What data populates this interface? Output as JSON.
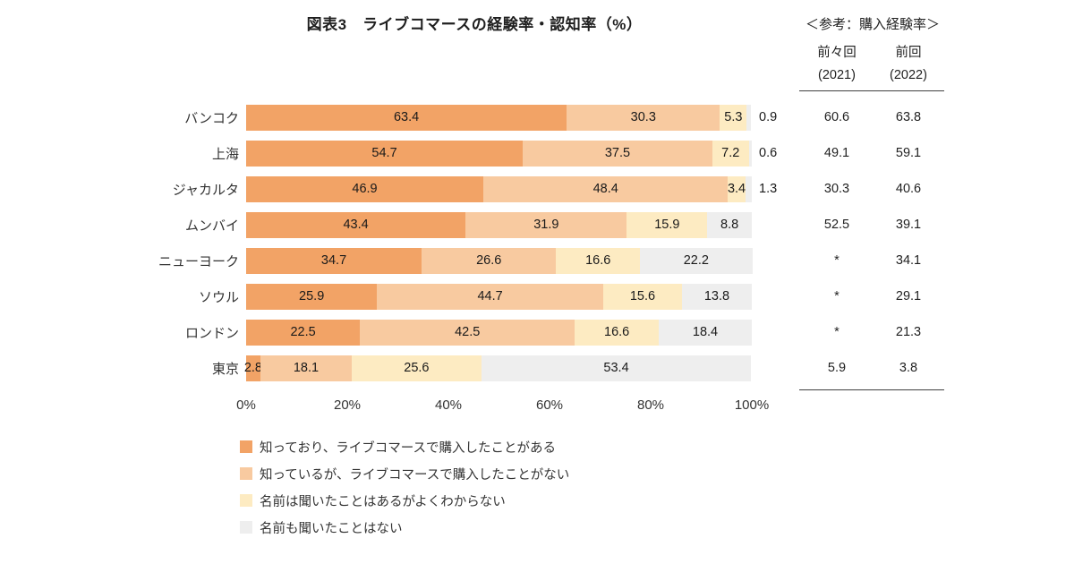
{
  "reference": {
    "heading": "＜参考：購入経験率＞",
    "columns": [
      {
        "label": "前々回",
        "year": "(2021)"
      },
      {
        "label": "前回",
        "year": "(2022)"
      }
    ],
    "values": [
      [
        "60.6",
        "63.8"
      ],
      [
        "49.1",
        "59.1"
      ],
      [
        "30.3",
        "40.6"
      ],
      [
        "52.5",
        "39.1"
      ],
      [
        "*",
        "34.1"
      ],
      [
        "*",
        "29.1"
      ],
      [
        "*",
        "21.3"
      ],
      [
        "5.9",
        "3.8"
      ]
    ]
  },
  "chart_data": {
    "type": "bar",
    "orientation": "horizontal",
    "stacked": true,
    "title": "図表3　ライブコマースの経験率・認知率（%）",
    "xlim": [
      0,
      100
    ],
    "x_ticks": [
      "0%",
      "20%",
      "40%",
      "60%",
      "80%",
      "100%"
    ],
    "grid": false,
    "legend_position": "bottom",
    "categories": [
      "バンコク",
      "上海",
      "ジャカルタ",
      "ムンバイ",
      "ニューヨーク",
      "ソウル",
      "ロンドン",
      "東京"
    ],
    "series": [
      {
        "name": "知っており、ライブコマースで購入したことがある",
        "color": "#F2A366",
        "values": [
          63.4,
          54.7,
          46.9,
          43.4,
          34.7,
          25.9,
          22.5,
          2.8
        ]
      },
      {
        "name": "知っているが、ライブコマースで購入したことがない",
        "color": "#F8CAA0",
        "values": [
          30.3,
          37.5,
          48.4,
          31.9,
          26.6,
          44.7,
          42.5,
          18.1
        ]
      },
      {
        "name": "名前は聞いたことはあるがよくわからない",
        "color": "#FDEBC2",
        "values": [
          5.3,
          7.2,
          3.4,
          15.9,
          16.6,
          15.6,
          16.6,
          25.6
        ]
      },
      {
        "name": "名前も聞いたことはない",
        "color": "#EEEEEE",
        "values": [
          0.9,
          0.6,
          1.3,
          8.8,
          22.2,
          13.8,
          18.4,
          53.4
        ]
      }
    ]
  }
}
